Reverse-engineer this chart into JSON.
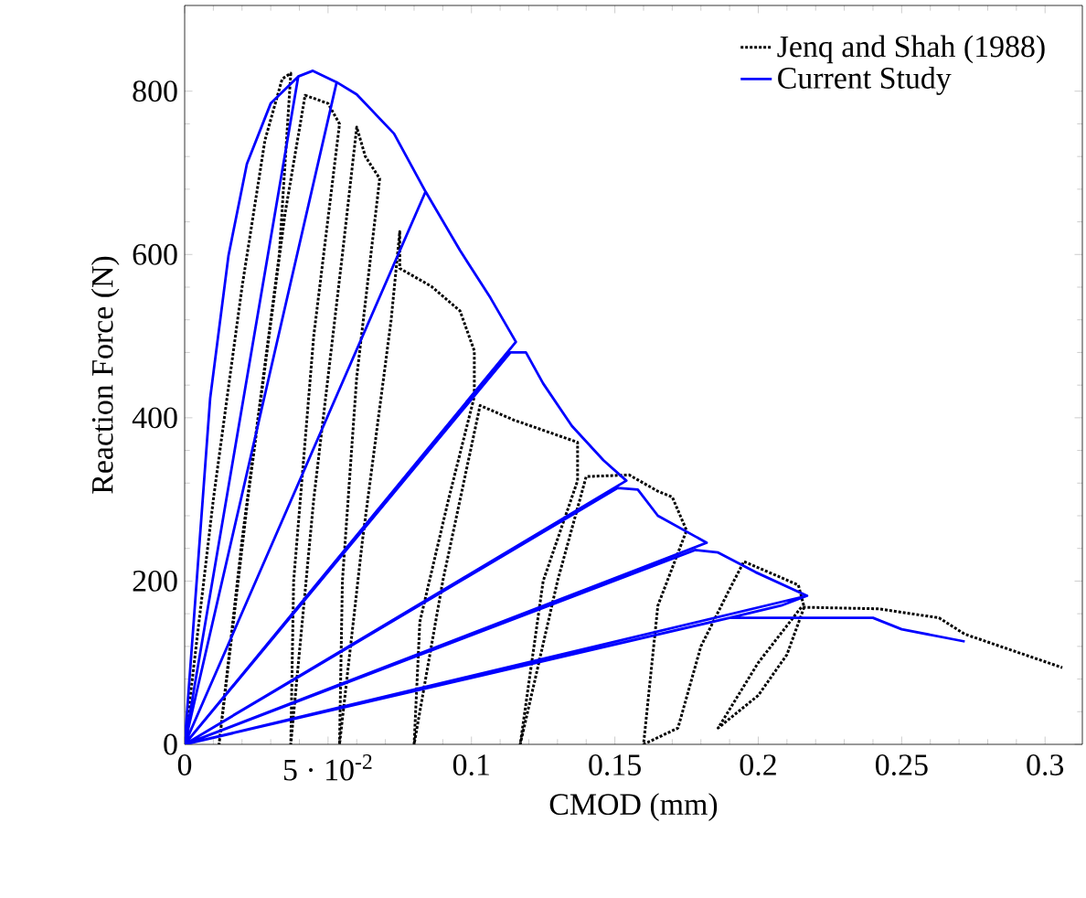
{
  "chart_data": {
    "type": "line",
    "xlabel": "CMOD (mm)",
    "ylabel": "Reaction Force (N)",
    "xlim": [
      0,
      0.313
    ],
    "ylim": [
      0,
      905
    ],
    "xticks": [
      0,
      {
        "value": 0.05,
        "label": "5 · 10$^{-2}$"
      },
      0.1,
      0.15,
      0.2,
      0.25,
      0.3
    ],
    "yticks": [
      0,
      200,
      400,
      600,
      800
    ],
    "legend": "top right",
    "marker": "none",
    "series": [
      {
        "name": "Jenq and Shah (1988)",
        "color": "#000000",
        "line_style": "dotted",
        "x": [
          0,
          0.01,
          0.02,
          0.028,
          0.034,
          0.037,
          0.033,
          0.02,
          0.012,
          0.022,
          0.035,
          0.042,
          0.05,
          0.054,
          0.045,
          0.038,
          0.037,
          0.045,
          0.055,
          0.06,
          0.063,
          0.068,
          0.06,
          0.055,
          0.054,
          0.062,
          0.072,
          0.075,
          0.075,
          0.086,
          0.096,
          0.101,
          0.101,
          0.092,
          0.082,
          0.08,
          0.09,
          0.103,
          0.115,
          0.137,
          0.137,
          0.125,
          0.117,
          0.13,
          0.14,
          0.155,
          0.165,
          0.17,
          0.175,
          0.165,
          0.16,
          0.172,
          0.18,
          0.19,
          0.195,
          0.214,
          0.216,
          0.21,
          0.2,
          0.186,
          0.2,
          0.215,
          0.242,
          0.263,
          0.272,
          0.306
        ],
        "values": [
          0,
          300,
          560,
          740,
          815,
          822,
          600,
          250,
          0,
          300,
          650,
          795,
          785,
          760,
          500,
          200,
          0,
          300,
          600,
          756,
          720,
          693,
          450,
          200,
          0,
          250,
          520,
          628,
          583,
          561,
          531,
          482,
          426,
          300,
          150,
          0,
          200,
          415,
          397,
          370,
          323,
          200,
          0,
          200,
          328,
          330,
          310,
          303,
          262,
          170,
          0,
          20,
          120,
          190,
          224,
          195,
          168,
          110,
          60,
          20,
          100,
          168,
          166,
          155,
          135,
          94
        ]
      },
      {
        "name": "Current Study",
        "color": "#0000ff",
        "line_style": "solid",
        "x": [
          0,
          0.0089,
          0.0153,
          0.0217,
          0.03,
          0.0396,
          0,
          0.0396,
          0.0447,
          0.053,
          0,
          0.053,
          0.06,
          0.073,
          0.084,
          0,
          0.084,
          0.096,
          0.1066,
          0.1155,
          0,
          0.1136,
          0.119,
          0.125,
          0.135,
          0.146,
          0.154,
          0,
          0.151,
          0.158,
          0.165,
          0.182,
          0,
          0.178,
          0.186,
          0.199,
          0.217,
          0,
          0.19,
          0.208,
          0.217,
          0.208,
          0.19,
          0.24,
          0.25,
          0.272
        ],
        "values": [
          0,
          424,
          599,
          711,
          785,
          818,
          0,
          818,
          825,
          811,
          0,
          811,
          796,
          748,
          677,
          0,
          677,
          605,
          547,
          493,
          0,
          480,
          480,
          442,
          390,
          348,
          323,
          0,
          314,
          312,
          280,
          247,
          0,
          238,
          235,
          211,
          182,
          0,
          155,
          170,
          182,
          170,
          155,
          155,
          141,
          126
        ]
      }
    ]
  }
}
